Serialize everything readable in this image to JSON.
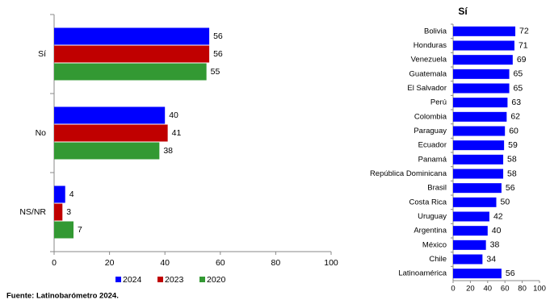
{
  "source": "Fuente: Latinobarómetro 2024.",
  "chart_data": [
    {
      "type": "bar",
      "orientation": "horizontal",
      "categories": [
        "Sí",
        "No",
        "NS/NR"
      ],
      "series": [
        {
          "name": "2024",
          "color": "#0000ff",
          "values": [
            56,
            40,
            4
          ]
        },
        {
          "name": "2023",
          "color": "#c00000",
          "values": [
            56,
            41,
            3
          ]
        },
        {
          "name": "2020",
          "color": "#339933",
          "values": [
            55,
            38,
            7
          ]
        }
      ],
      "xlim": [
        0,
        100
      ],
      "xticks": [
        0,
        20,
        40,
        60,
        80,
        100
      ],
      "legend": "bottom"
    },
    {
      "type": "bar",
      "orientation": "horizontal",
      "title": "Sí",
      "categories": [
        "Bolivia",
        "Honduras",
        "Venezuela",
        "Guatemala",
        "El Salvador",
        "Perú",
        "Colombia",
        "Paraguay",
        "Ecuador",
        "Panamá",
        "República Dominicana",
        "Brasil",
        "Costa Rica",
        "Uruguay",
        "Argentina",
        "México",
        "Chile",
        "Latinoamérica"
      ],
      "values": [
        72,
        71,
        69,
        65,
        65,
        63,
        62,
        60,
        59,
        58,
        58,
        56,
        50,
        42,
        40,
        38,
        34,
        56
      ],
      "color": "#0000ff",
      "xlim": [
        0,
        100
      ],
      "xticks": [
        0,
        20,
        40,
        60,
        80,
        100
      ]
    }
  ]
}
